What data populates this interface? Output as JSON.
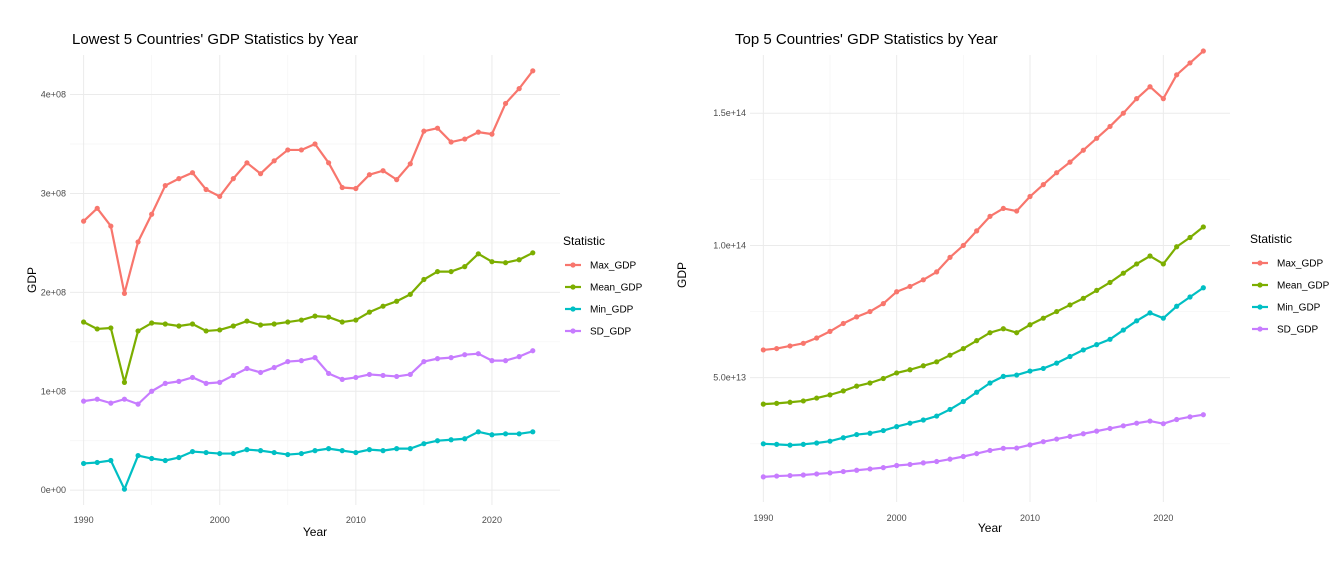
{
  "chart_data": [
    {
      "type": "line",
      "title": "Lowest 5 Countries' GDP Statistics by Year",
      "xlabel": "Year",
      "ylabel": "GDP",
      "xlim": [
        1989,
        2025
      ],
      "ylim": [
        -15000000,
        440000000
      ],
      "x_ticks": [
        1990,
        2000,
        2010,
        2020
      ],
      "x_tick_labels": [
        "1990",
        "2000",
        "2010",
        "2020"
      ],
      "y_ticks": [
        0,
        100000000,
        200000000,
        300000000,
        400000000
      ],
      "y_tick_labels": [
        "0e+00",
        "1e+08",
        "2e+08",
        "3e+08",
        "4e+08"
      ],
      "grid": true,
      "legend": {
        "title": "Statistic",
        "position": "right"
      },
      "x": [
        1990,
        1991,
        1992,
        1993,
        1994,
        1995,
        1996,
        1997,
        1998,
        1999,
        2000,
        2001,
        2002,
        2003,
        2004,
        2005,
        2006,
        2007,
        2008,
        2009,
        2010,
        2011,
        2012,
        2013,
        2014,
        2015,
        2016,
        2017,
        2018,
        2019,
        2020,
        2021,
        2022,
        2023
      ],
      "series": [
        {
          "name": "Max_GDP",
          "color": "#F8766D",
          "values": [
            272000000,
            285000000,
            267000000,
            199000000,
            251000000,
            279000000,
            308000000,
            315000000,
            321000000,
            304000000,
            297000000,
            315000000,
            331000000,
            320000000,
            333000000,
            344000000,
            344000000,
            350000000,
            331000000,
            306000000,
            305000000,
            319000000,
            323000000,
            314000000,
            330000000,
            363000000,
            366000000,
            352000000,
            355000000,
            362000000,
            360000000,
            391000000,
            406000000,
            424000000
          ]
        },
        {
          "name": "Mean_GDP",
          "color": "#7CAE00",
          "values": [
            170000000,
            163000000,
            164000000,
            109000000,
            161000000,
            169000000,
            168000000,
            166000000,
            168000000,
            161000000,
            162000000,
            166000000,
            171000000,
            167000000,
            168000000,
            170000000,
            172000000,
            176000000,
            175000000,
            170000000,
            172000000,
            180000000,
            186000000,
            191000000,
            198000000,
            213000000,
            221000000,
            221000000,
            226000000,
            239000000,
            231000000,
            230000000,
            233000000,
            240000000
          ]
        },
        {
          "name": "Min_GDP",
          "color": "#00BFC4",
          "values": [
            27000000,
            28000000,
            30000000,
            1000000,
            35000000,
            32000000,
            30000000,
            33000000,
            39000000,
            38000000,
            37000000,
            37000000,
            41000000,
            40000000,
            38000000,
            36000000,
            37000000,
            40000000,
            42000000,
            40000000,
            38000000,
            41000000,
            40000000,
            42000000,
            42000000,
            47000000,
            50000000,
            51000000,
            52000000,
            59000000,
            56000000,
            57000000,
            57000000,
            59000000
          ]
        },
        {
          "name": "SD_GDP",
          "color": "#C77CFF",
          "values": [
            90000000,
            92000000,
            88000000,
            92000000,
            87000000,
            100000000,
            108000000,
            110000000,
            114000000,
            108000000,
            109000000,
            116000000,
            123000000,
            119000000,
            124000000,
            130000000,
            131000000,
            134000000,
            118000000,
            112000000,
            114000000,
            117000000,
            116000000,
            115000000,
            117000000,
            130000000,
            133000000,
            134000000,
            137000000,
            138000000,
            131000000,
            131000000,
            135000000,
            141000000
          ]
        }
      ]
    },
    {
      "type": "line",
      "title": "Top 5 Countries' GDP Statistics by Year",
      "xlabel": "Year",
      "ylabel": "GDP",
      "xlim": [
        1989,
        2025
      ],
      "ylim": [
        3000000000000,
        172000000000000
      ],
      "x_ticks": [
        1990,
        2000,
        2010,
        2020
      ],
      "x_tick_labels": [
        "1990",
        "2000",
        "2010",
        "2020"
      ],
      "y_ticks": [
        50000000000000,
        100000000000000,
        150000000000000
      ],
      "y_tick_labels": [
        "5.0e+13",
        "1.0e+14",
        "1.5e+14"
      ],
      "grid": true,
      "legend": {
        "title": "Statistic",
        "position": "right"
      },
      "x": [
        1990,
        1991,
        1992,
        1993,
        1994,
        1995,
        1996,
        1997,
        1998,
        1999,
        2000,
        2001,
        2002,
        2003,
        2004,
        2005,
        2006,
        2007,
        2008,
        2009,
        2010,
        2011,
        2012,
        2013,
        2014,
        2015,
        2016,
        2017,
        2018,
        2019,
        2020,
        2021,
        2022,
        2023
      ],
      "series": [
        {
          "name": "Max_GDP",
          "color": "#F8766D",
          "values": [
            60500000000000,
            61000000000000,
            62000000000000,
            63000000000000,
            65000000000000,
            67500000000000,
            70500000000000,
            73000000000000,
            75000000000000,
            78000000000000,
            82500000000000,
            84500000000000,
            87000000000000,
            90000000000000,
            95500000000000,
            100000000000000,
            105500000000000,
            111000000000000,
            114000000000000,
            113000000000000,
            118500000000000,
            123000000000000,
            127500000000000,
            131500000000000,
            136000000000000,
            140500000000000,
            145000000000000,
            150000000000000,
            155500000000000,
            160000000000000,
            155500000000000,
            164500000000000,
            169000000000000,
            173500000000000
          ]
        },
        {
          "name": "Mean_GDP",
          "color": "#7CAE00",
          "values": [
            40000000000000,
            40300000000000,
            40700000000000,
            41200000000000,
            42300000000000,
            43500000000000,
            45000000000000,
            46800000000000,
            48000000000000,
            49700000000000,
            51800000000000,
            53000000000000,
            54500000000000,
            56000000000000,
            58500000000000,
            61000000000000,
            64000000000000,
            67000000000000,
            68500000000000,
            67000000000000,
            70000000000000,
            72500000000000,
            75000000000000,
            77500000000000,
            80000000000000,
            83000000000000,
            86000000000000,
            89500000000000,
            93000000000000,
            96000000000000,
            93000000000000,
            99500000000000,
            103000000000000,
            107000000000000
          ]
        },
        {
          "name": "Min_GDP",
          "color": "#00BFC4",
          "values": [
            25000000000000,
            24800000000000,
            24500000000000,
            24800000000000,
            25300000000000,
            26000000000000,
            27300000000000,
            28500000000000,
            29000000000000,
            30000000000000,
            31500000000000,
            32800000000000,
            34000000000000,
            35500000000000,
            38000000000000,
            41000000000000,
            44500000000000,
            48000000000000,
            50500000000000,
            51000000000000,
            52500000000000,
            53500000000000,
            55500000000000,
            58000000000000,
            60500000000000,
            62500000000000,
            64500000000000,
            68000000000000,
            71500000000000,
            74500000000000,
            72500000000000,
            77000000000000,
            80500000000000,
            84000000000000
          ]
        },
        {
          "name": "SD_GDP",
          "color": "#C77CFF",
          "values": [
            12500000000000,
            12800000000000,
            13000000000000,
            13200000000000,
            13600000000000,
            14000000000000,
            14500000000000,
            15000000000000,
            15500000000000,
            16000000000000,
            16800000000000,
            17200000000000,
            17800000000000,
            18300000000000,
            19200000000000,
            20200000000000,
            21300000000000,
            22500000000000,
            23300000000000,
            23400000000000,
            24600000000000,
            25800000000000,
            26800000000000,
            27800000000000,
            28800000000000,
            29800000000000,
            30800000000000,
            31800000000000,
            32800000000000,
            33600000000000,
            32600000000000,
            34200000000000,
            35200000000000,
            36000000000000
          ]
        }
      ]
    }
  ]
}
